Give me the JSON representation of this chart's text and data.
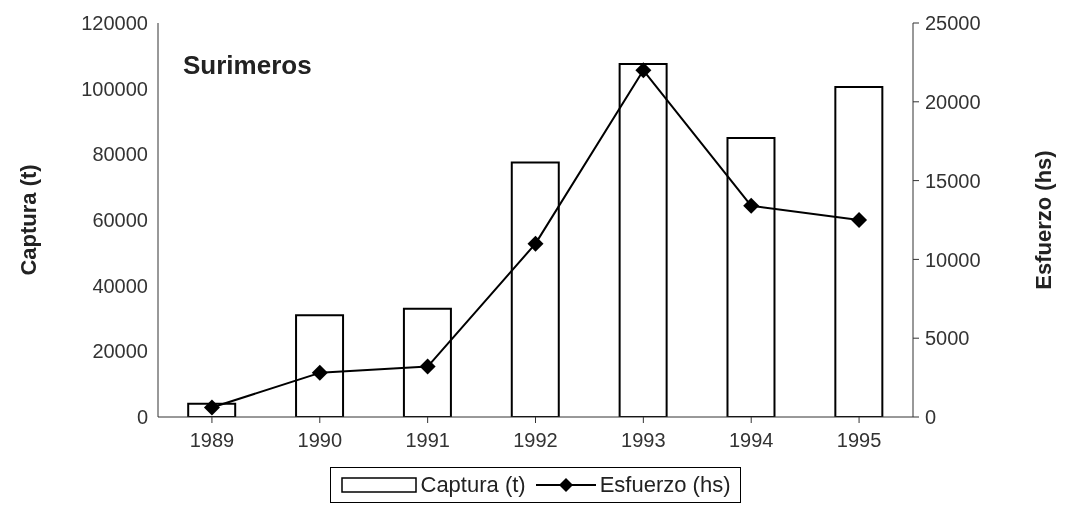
{
  "chart_data": {
    "type": "bar",
    "title": "Surimeros",
    "ylabel": "Captura (t)",
    "y2label": "Esfuerzo (hs)",
    "categories": [
      "1989",
      "1990",
      "1991",
      "1992",
      "1993",
      "1994",
      "1995"
    ],
    "series": [
      {
        "name": "Captura (t)",
        "color": "#ffffff",
        "values": [
          4000,
          31000,
          33000,
          77500,
          107500,
          85000,
          100500
        ]
      },
      {
        "name": "Esfuerzo (hs)",
        "type": "line",
        "axis": "y2",
        "color": "#000000",
        "marker": "diamond",
        "values": [
          600,
          2800,
          3200,
          11000,
          22000,
          13400,
          12500
        ]
      }
    ],
    "ylim": [
      0,
      120000
    ],
    "yticks": [
      0,
      20000,
      40000,
      60000,
      80000,
      100000,
      120000
    ],
    "y2lim": [
      0,
      25000
    ],
    "y2ticks": [
      0,
      5000,
      10000,
      15000,
      20000,
      25000
    ],
    "grid": false,
    "legend": "bottom"
  }
}
